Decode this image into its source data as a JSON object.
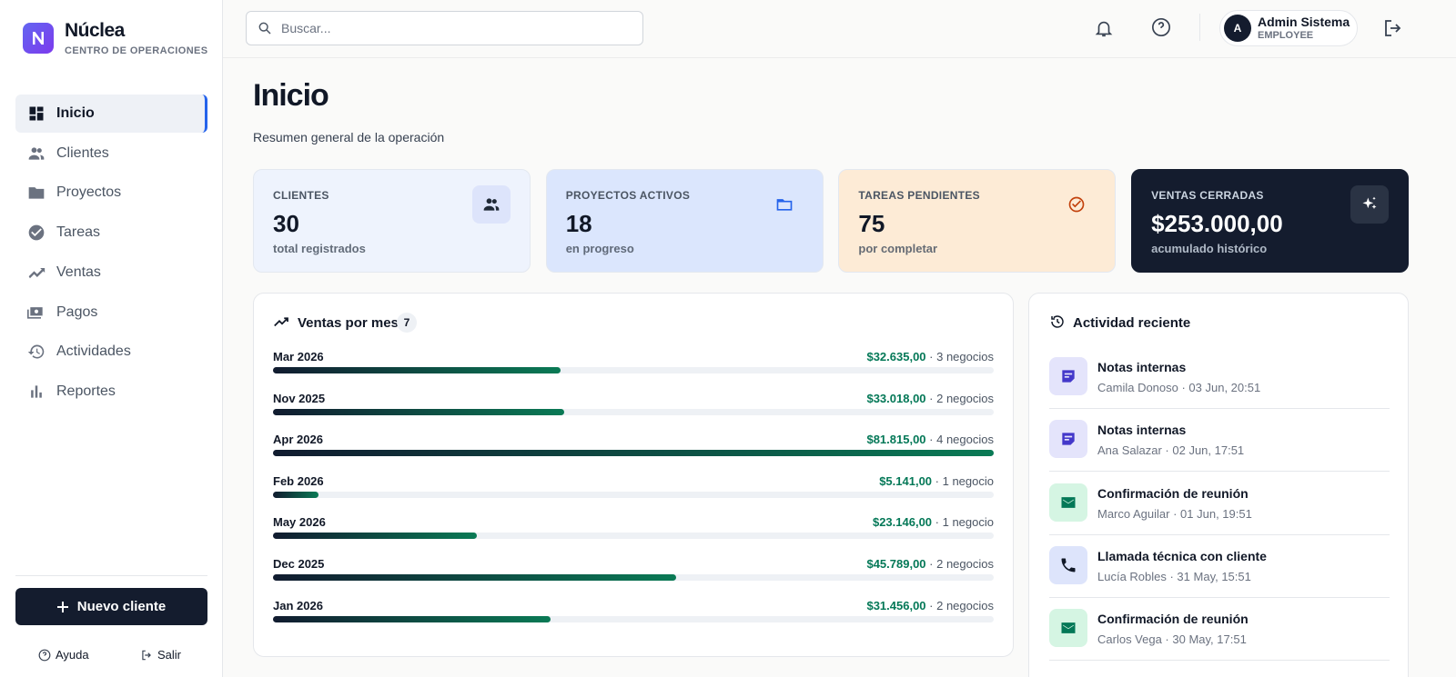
{
  "sidebar": {
    "brand": "Núclea",
    "subtitle": "CENTRO DE OPERACIONES",
    "nav": [
      "Inicio",
      "Clientes",
      "Proyectos",
      "Tareas",
      "Ventas",
      "Pagos",
      "Actividades",
      "Reportes"
    ],
    "cta": "Nuevo cliente",
    "footer": [
      "Ayuda",
      "Salir"
    ]
  },
  "header": {
    "search_placeholder": "Buscar...",
    "user": {
      "initial": "A",
      "name": "Admin Sistema",
      "role": "EMPLOYEE"
    }
  },
  "page": {
    "title": "Inicio",
    "subtitle": "Resumen general de la operación"
  },
  "cards": [
    {
      "label": "CLIENTES",
      "value": 30,
      "note": "total registrados"
    },
    {
      "label": "PROYECTOS ACTIVOS",
      "value": 18,
      "note": "en progreso"
    },
    {
      "label": "TAREAS PENDIENTES",
      "value": 75,
      "note": "por completar"
    },
    {
      "label": "VENTAS CERRADAS",
      "value": "$253.000,00",
      "note": "acumulado histórico"
    }
  ],
  "sales": {
    "title": "Ventas por mes",
    "count": 7,
    "months": [
      "Mar 2026",
      "Nov 2025",
      "Apr 2026",
      "Feb 2026",
      "May 2026",
      "Dec 2025",
      "Jan 2026"
    ],
    "values": [
      32635,
      33018,
      81815,
      5141,
      23146,
      45789,
      31456
    ],
    "value_labels": [
      "$32.635,00",
      "$33.018,00",
      "$81.815,00",
      "$5.141,00",
      "$23.146,00",
      "$45.789,00",
      "$31.456,00"
    ],
    "deals": [
      "· 3 negocios",
      "· 2 negocios",
      "· 4 negocios",
      "· 1 negocio",
      "· 1 negocio",
      "· 2 negocios",
      "· 2 negocios"
    ]
  },
  "activity": {
    "title": "Actividad reciente",
    "items": [
      {
        "title": "Notas internas",
        "meta": "Camila Donoso · 03 Jun, 20:51"
      },
      {
        "title": "Notas internas",
        "meta": "Ana Salazar · 02 Jun, 17:51"
      },
      {
        "title": "Confirmación de reunión",
        "meta": "Marco Aguilar · 01 Jun, 19:51"
      },
      {
        "title": "Llamada técnica con cliente",
        "meta": "Lucía Robles · 31 May, 15:51"
      },
      {
        "title": "Confirmación de reunión",
        "meta": "Carlos Vega · 30 May, 17:51"
      }
    ]
  }
}
